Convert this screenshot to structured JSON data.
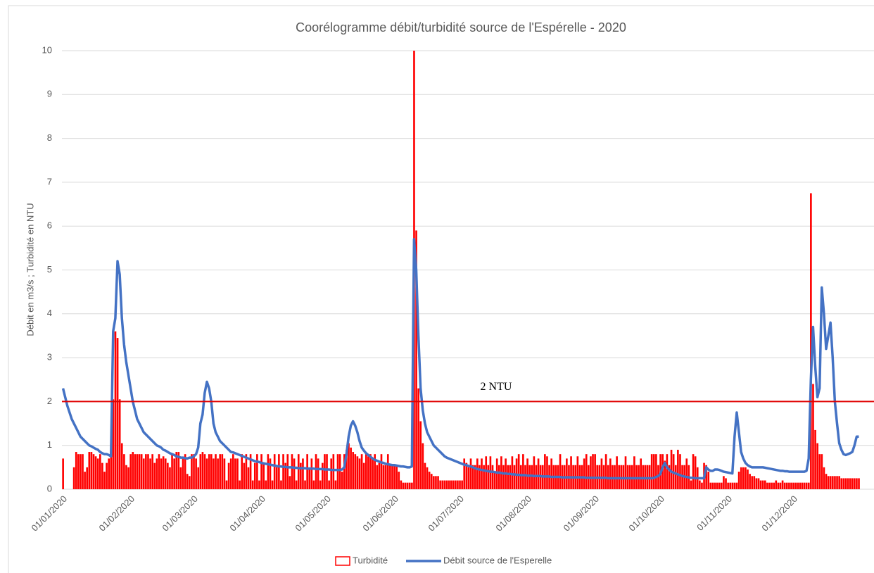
{
  "chart_data": {
    "type": "bar",
    "title": "Coorélogramme débit/turbidité source de l'Espérelle - 2020",
    "y_label": "Débit en m3/s ; Turbidité en NTU",
    "ylim": [
      0,
      10
    ],
    "yticks": [
      0,
      1,
      2,
      3,
      4,
      5,
      6,
      7,
      8,
      9,
      10
    ],
    "grid": true,
    "legend": "bottom",
    "threshold": {
      "value": 2,
      "label": "2 NTU",
      "color": "#e00000"
    },
    "categories": [
      "01/01/2020",
      null,
      null,
      null,
      null,
      null,
      null,
      null,
      null,
      null,
      null,
      null,
      null,
      null,
      null,
      null,
      null,
      null,
      null,
      null,
      null,
      null,
      null,
      null,
      null,
      null,
      null,
      null,
      null,
      null,
      null,
      "01/02/2020",
      null,
      null,
      null,
      null,
      null,
      null,
      null,
      null,
      null,
      null,
      null,
      null,
      null,
      null,
      null,
      null,
      null,
      null,
      null,
      null,
      null,
      null,
      null,
      null,
      null,
      null,
      null,
      null,
      "01/03/2020",
      null,
      null,
      null,
      null,
      null,
      null,
      null,
      null,
      null,
      null,
      null,
      null,
      null,
      null,
      null,
      null,
      null,
      null,
      null,
      null,
      null,
      null,
      null,
      null,
      null,
      null,
      null,
      null,
      null,
      null,
      "01/04/2020",
      null,
      null,
      null,
      null,
      null,
      null,
      null,
      null,
      null,
      null,
      null,
      null,
      null,
      null,
      null,
      null,
      null,
      null,
      null,
      null,
      null,
      null,
      null,
      null,
      null,
      null,
      null,
      null,
      null,
      "01/05/2020",
      null,
      null,
      null,
      null,
      null,
      null,
      null,
      null,
      null,
      null,
      null,
      null,
      null,
      null,
      null,
      null,
      null,
      null,
      null,
      null,
      null,
      null,
      null,
      null,
      null,
      null,
      null,
      null,
      null,
      null,
      "01/06/2020",
      null,
      null,
      null,
      null,
      null,
      null,
      null,
      null,
      null,
      null,
      null,
      null,
      null,
      null,
      null,
      null,
      null,
      null,
      null,
      null,
      null,
      null,
      null,
      null,
      null,
      null,
      null,
      null,
      null,
      "01/07/2020",
      null,
      null,
      null,
      null,
      null,
      null,
      null,
      null,
      null,
      null,
      null,
      null,
      null,
      null,
      null,
      null,
      null,
      null,
      null,
      null,
      null,
      null,
      null,
      null,
      null,
      null,
      null,
      null,
      null,
      null,
      "01/08/2020",
      null,
      null,
      null,
      null,
      null,
      null,
      null,
      null,
      null,
      null,
      null,
      null,
      null,
      null,
      null,
      null,
      null,
      null,
      null,
      null,
      null,
      null,
      null,
      null,
      null,
      null,
      null,
      null,
      null,
      null,
      "01/09/2020",
      null,
      null,
      null,
      null,
      null,
      null,
      null,
      null,
      null,
      null,
      null,
      null,
      null,
      null,
      null,
      null,
      null,
      null,
      null,
      null,
      null,
      null,
      null,
      null,
      null,
      null,
      null,
      null,
      null,
      "01/10/2020",
      null,
      null,
      null,
      null,
      null,
      null,
      null,
      null,
      null,
      null,
      null,
      null,
      null,
      null,
      null,
      null,
      null,
      null,
      null,
      null,
      null,
      null,
      null,
      null,
      null,
      null,
      null,
      null,
      null,
      null,
      "01/11/2020",
      null,
      null,
      null,
      null,
      null,
      null,
      null,
      null,
      null,
      null,
      null,
      null,
      null,
      null,
      null,
      null,
      null,
      null,
      null,
      null,
      null,
      null,
      null,
      null,
      null,
      null,
      null,
      null,
      null,
      "01/12/2020",
      null,
      null,
      null,
      null,
      null,
      null,
      null,
      null,
      null,
      null,
      null,
      null,
      null,
      null,
      null,
      null,
      null,
      null,
      null,
      null,
      null,
      null,
      null,
      null,
      null,
      null,
      null,
      null,
      null,
      null
    ],
    "series": [
      {
        "name": "Turbidité",
        "type": "bar",
        "color": "#ff0000",
        "values": [
          0.7,
          0,
          0,
          0,
          0,
          0.5,
          0.85,
          0.8,
          0.8,
          0.8,
          0.4,
          0.5,
          0.85,
          0.85,
          0.8,
          0.75,
          0.7,
          0.8,
          0.6,
          0.4,
          0.6,
          0.7,
          1.05,
          2.05,
          3.6,
          3.45,
          2.05,
          1.05,
          0.8,
          0.55,
          0.5,
          0.8,
          0.85,
          0.8,
          0.8,
          0.8,
          0.8,
          0.7,
          0.8,
          0.8,
          0.7,
          0.8,
          0.6,
          0.7,
          0.8,
          0.7,
          0.75,
          0.7,
          0.6,
          0.5,
          0.8,
          0.7,
          0.85,
          0.85,
          0.5,
          0.7,
          0.8,
          0.35,
          0.3,
          0.8,
          0.8,
          0.7,
          0.5,
          0.8,
          0.85,
          0.8,
          0.7,
          0.8,
          0.8,
          0.7,
          0.8,
          0.7,
          0.8,
          0.8,
          0.7,
          0.2,
          0.6,
          0.7,
          0.8,
          0.7,
          0.7,
          0.2,
          0.8,
          0.6,
          0.8,
          0.5,
          0.8,
          0.2,
          0.6,
          0.8,
          0.2,
          0.8,
          0.6,
          0.2,
          0.8,
          0.7,
          0.2,
          0.8,
          0.5,
          0.8,
          0.2,
          0.8,
          0.6,
          0.8,
          0.3,
          0.8,
          0.7,
          0.2,
          0.8,
          0.6,
          0.7,
          0.2,
          0.8,
          0.5,
          0.7,
          0.2,
          0.8,
          0.7,
          0.2,
          0.6,
          0.8,
          0.8,
          0.2,
          0.7,
          0.8,
          0.2,
          0.8,
          0.8,
          0.4,
          0.8,
          0.9,
          1.05,
          0.95,
          0.85,
          0.8,
          0.75,
          0.7,
          0.8,
          0.6,
          0.8,
          0.75,
          0.8,
          0.7,
          0.8,
          0.55,
          0.6,
          0.8,
          0.55,
          0.55,
          0.8,
          0.55,
          0.55,
          0.55,
          0.55,
          0.4,
          0.2,
          0.15,
          0.15,
          0.15,
          0.15,
          0.15,
          10,
          5.9,
          2.3,
          1.55,
          1.05,
          0.6,
          0.5,
          0.4,
          0.35,
          0.3,
          0.3,
          0.3,
          0.2,
          0.2,
          0.2,
          0.2,
          0.2,
          0.2,
          0.2,
          0.2,
          0.2,
          0.2,
          0.2,
          0.7,
          0.6,
          0.5,
          0.7,
          0.55,
          0.55,
          0.7,
          0.55,
          0.7,
          0.55,
          0.75,
          0.55,
          0.75,
          0.55,
          0.4,
          0.7,
          0.55,
          0.75,
          0.55,
          0.7,
          0.55,
          0.55,
          0.75,
          0.55,
          0.7,
          0.8,
          0.55,
          0.8,
          0.55,
          0.7,
          0.55,
          0.55,
          0.75,
          0.55,
          0.7,
          0.55,
          0.55,
          0.8,
          0.75,
          0.55,
          0.7,
          0.55,
          0.55,
          0.55,
          0.8,
          0.55,
          0.55,
          0.7,
          0.55,
          0.75,
          0.55,
          0.55,
          0.75,
          0.55,
          0.55,
          0.7,
          0.8,
          0.55,
          0.75,
          0.8,
          0.8,
          0.55,
          0.55,
          0.7,
          0.55,
          0.8,
          0.55,
          0.7,
          0.55,
          0.55,
          0.75,
          0.55,
          0.55,
          0.55,
          0.75,
          0.55,
          0.55,
          0.55,
          0.75,
          0.55,
          0.55,
          0.7,
          0.55,
          0.55,
          0.55,
          0.55,
          0.8,
          0.8,
          0.8,
          0.55,
          0.8,
          0.8,
          0.65,
          0.8,
          0.55,
          0.9,
          0.8,
          0.55,
          0.9,
          0.8,
          0.55,
          0.55,
          0.7,
          0.55,
          0.2,
          0.8,
          0.75,
          0.5,
          0.2,
          0.15,
          0.6,
          0.55,
          0.4,
          0.15,
          0.15,
          0.15,
          0.15,
          0.15,
          0.15,
          0.3,
          0.25,
          0.15,
          0.15,
          0.15,
          0.15,
          0.15,
          0.4,
          0.5,
          0.5,
          0.5,
          0.45,
          0.35,
          0.3,
          0.3,
          0.25,
          0.25,
          0.2,
          0.2,
          0.2,
          0.15,
          0.15,
          0.15,
          0.15,
          0.2,
          0.15,
          0.15,
          0.2,
          0.15,
          0.15,
          0.15,
          0.15,
          0.15,
          0.15,
          0.15,
          0.15,
          0.15,
          0.15,
          0.15,
          0.15,
          6.75,
          2.4,
          1.35,
          1.05,
          0.8,
          0.8,
          0.5,
          0.35,
          0.3,
          0.3,
          0.3,
          0.3,
          0.3,
          0.3,
          0.25,
          0.25,
          0.25,
          0.25,
          0.25,
          0.25,
          0.25,
          0.25,
          0.25
        ]
      },
      {
        "name": "Débit source de l'Esperelle",
        "type": "line",
        "color": "#4472c4",
        "values": [
          2.3,
          2.1,
          1.9,
          1.75,
          1.6,
          1.5,
          1.4,
          1.3,
          1.2,
          1.15,
          1.1,
          1.05,
          1.0,
          0.98,
          0.95,
          0.92,
          0.9,
          0.85,
          0.82,
          0.8,
          0.8,
          0.78,
          0.75,
          3.6,
          3.9,
          5.2,
          4.9,
          3.9,
          3.3,
          2.9,
          2.6,
          2.3,
          2.0,
          1.8,
          1.6,
          1.5,
          1.4,
          1.3,
          1.25,
          1.2,
          1.15,
          1.1,
          1.05,
          1.0,
          0.98,
          0.95,
          0.9,
          0.88,
          0.85,
          0.82,
          0.8,
          0.78,
          0.75,
          0.74,
          0.72,
          0.72,
          0.71,
          0.7,
          0.72,
          0.72,
          0.75,
          0.8,
          0.95,
          1.5,
          1.7,
          2.2,
          2.45,
          2.3,
          2.0,
          1.5,
          1.3,
          1.2,
          1.1,
          1.05,
          1.0,
          0.95,
          0.9,
          0.85,
          0.84,
          0.82,
          0.8,
          0.78,
          0.76,
          0.74,
          0.72,
          0.7,
          0.68,
          0.66,
          0.64,
          0.63,
          0.62,
          0.6,
          0.59,
          0.58,
          0.57,
          0.56,
          0.55,
          0.54,
          0.53,
          0.52,
          0.52,
          0.51,
          0.51,
          0.5,
          0.5,
          0.5,
          0.49,
          0.49,
          0.48,
          0.48,
          0.48,
          0.48,
          0.47,
          0.47,
          0.47,
          0.47,
          0.46,
          0.46,
          0.46,
          0.46,
          0.45,
          0.45,
          0.45,
          0.44,
          0.44,
          0.44,
          0.44,
          0.44,
          0.45,
          0.5,
          0.8,
          1.2,
          1.45,
          1.55,
          1.45,
          1.3,
          1.1,
          0.95,
          0.88,
          0.82,
          0.78,
          0.74,
          0.7,
          0.67,
          0.65,
          0.63,
          0.61,
          0.6,
          0.58,
          0.57,
          0.56,
          0.55,
          0.55,
          0.54,
          0.53,
          0.52,
          0.52,
          0.51,
          0.5,
          0.5,
          0.52,
          5.7,
          5.0,
          3.5,
          2.3,
          1.8,
          1.5,
          1.3,
          1.2,
          1.1,
          1.0,
          0.95,
          0.9,
          0.85,
          0.8,
          0.75,
          0.72,
          0.7,
          0.68,
          0.66,
          0.64,
          0.62,
          0.6,
          0.58,
          0.56,
          0.55,
          0.53,
          0.52,
          0.5,
          0.48,
          0.46,
          0.45,
          0.44,
          0.43,
          0.42,
          0.41,
          0.4,
          0.4,
          0.39,
          0.38,
          0.38,
          0.37,
          0.36,
          0.36,
          0.35,
          0.35,
          0.34,
          0.34,
          0.33,
          0.33,
          0.32,
          0.32,
          0.32,
          0.31,
          0.31,
          0.31,
          0.3,
          0.3,
          0.3,
          0.3,
          0.29,
          0.29,
          0.29,
          0.29,
          0.28,
          0.28,
          0.28,
          0.28,
          0.28,
          0.27,
          0.27,
          0.27,
          0.27,
          0.27,
          0.27,
          0.27,
          0.27,
          0.27,
          0.27,
          0.27,
          0.26,
          0.26,
          0.26,
          0.26,
          0.26,
          0.26,
          0.26,
          0.26,
          0.26,
          0.26,
          0.25,
          0.25,
          0.25,
          0.25,
          0.25,
          0.25,
          0.25,
          0.25,
          0.25,
          0.25,
          0.25,
          0.25,
          0.25,
          0.25,
          0.25,
          0.25,
          0.25,
          0.25,
          0.25,
          0.25,
          0.25,
          0.26,
          0.28,
          0.3,
          0.35,
          0.5,
          0.6,
          0.5,
          0.45,
          0.4,
          0.38,
          0.36,
          0.34,
          0.32,
          0.3,
          0.29,
          0.28,
          0.27,
          0.26,
          0.26,
          0.25,
          0.25,
          0.25,
          0.25,
          0.25,
          0.5,
          0.45,
          0.42,
          0.42,
          0.45,
          0.45,
          0.44,
          0.42,
          0.4,
          0.39,
          0.38,
          0.37,
          0.36,
          1.2,
          1.75,
          1.3,
          0.85,
          0.7,
          0.6,
          0.55,
          0.52,
          0.5,
          0.5,
          0.5,
          0.5,
          0.5,
          0.5,
          0.49,
          0.48,
          0.47,
          0.46,
          0.45,
          0.44,
          0.43,
          0.42,
          0.42,
          0.41,
          0.41,
          0.4,
          0.4,
          0.4,
          0.4,
          0.4,
          0.4,
          0.4,
          0.4,
          0.42,
          0.7,
          2.5,
          3.7,
          2.8,
          2.1,
          2.3,
          4.6,
          4.0,
          3.2,
          3.5,
          3.8,
          3.0,
          2.0,
          1.5,
          1.05,
          0.9,
          0.8,
          0.78,
          0.8,
          0.82,
          0.85,
          1.0,
          1.2,
          1.2
        ]
      }
    ]
  }
}
